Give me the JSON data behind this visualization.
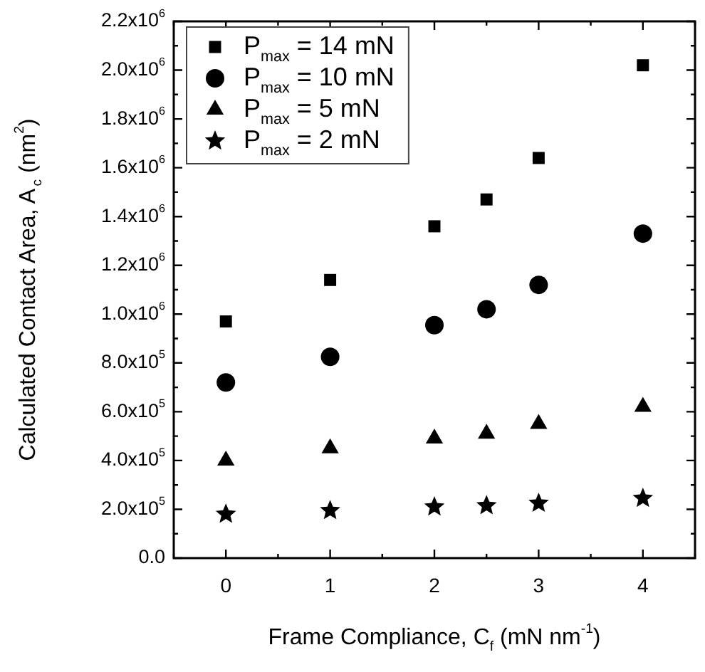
{
  "chart_data": {
    "type": "scatter",
    "xlabel": "Frame Compliance, C$_{f}$ (mN nm$^{-1}$)",
    "ylabel": "Calculated Contact Area, A$_{c}$ (nm$^{2}$)",
    "x": [
      0,
      1,
      2,
      2.5,
      3,
      4
    ],
    "series": [
      {
        "name": "P$_{max}$ = 14 mN",
        "color": "#000000",
        "marker": "square",
        "values": [
          970000,
          1140000,
          1360000,
          1470000,
          1640000,
          2020000
        ]
      },
      {
        "name": "P$_{max}$ = 10 mN",
        "color": "#000000",
        "marker": "circle",
        "values": [
          720000,
          825000,
          955000,
          1020000,
          1120000,
          1330000
        ]
      },
      {
        "name": "P$_{max}$ = 5 mN",
        "color": "#000000",
        "marker": "triangle",
        "values": [
          400000,
          450000,
          490000,
          510000,
          550000,
          620000
        ]
      },
      {
        "name": "P$_{max}$ = 2 mN",
        "color": "#000000",
        "marker": "star",
        "values": [
          180000,
          195000,
          210000,
          215000,
          225000,
          245000
        ]
      }
    ],
    "xlim": [
      -0.5,
      4.5
    ],
    "xticks": [
      {
        "value": -0.5,
        "label": null
      },
      0,
      {
        "value": 0.5,
        "label": null
      },
      1,
      {
        "value": 1.5,
        "label": null
      },
      2,
      {
        "value": 2.5,
        "label": null
      },
      3,
      {
        "value": 3.5,
        "label": null
      },
      4,
      {
        "value": 4.5,
        "label": null
      }
    ],
    "ylim": [
      0,
      2200000
    ],
    "yticks": [
      {
        "value": 0,
        "label": "0.0"
      },
      {
        "value": 100000,
        "label": null
      },
      {
        "value": 200000,
        "label": "2.0x10$^{5}$"
      },
      {
        "value": 300000,
        "label": null
      },
      {
        "value": 400000,
        "label": "4.0x10$^{5}$"
      },
      {
        "value": 500000,
        "label": null
      },
      {
        "value": 600000,
        "label": "6.0x10$^{5}$"
      },
      {
        "value": 700000,
        "label": null
      },
      {
        "value": 800000,
        "label": "8.0x10$^{5}$"
      },
      {
        "value": 900000,
        "label": null
      },
      {
        "value": 1000000,
        "label": "1.0x10$^{6}$"
      },
      {
        "value": 1100000,
        "label": null
      },
      {
        "value": 1200000,
        "label": "1.2x10$^{6}$"
      },
      {
        "value": 1300000,
        "label": null
      },
      {
        "value": 1400000,
        "label": "1.4x10$^{6}$"
      },
      {
        "value": 1500000,
        "label": null
      },
      {
        "value": 1600000,
        "label": "1.6x10$^{6}$"
      },
      {
        "value": 1700000,
        "label": null
      },
      {
        "value": 1800000,
        "label": "1.8x10$^{6}$"
      },
      {
        "value": 1900000,
        "label": null
      },
      {
        "value": 2000000,
        "label": "2.0x10$^{6}$"
      },
      {
        "value": 2100000,
        "label": null
      },
      {
        "value": 2200000,
        "label": "2.2x10$^{6}$"
      }
    ],
    "legend": "top left",
    "grid": false
  }
}
